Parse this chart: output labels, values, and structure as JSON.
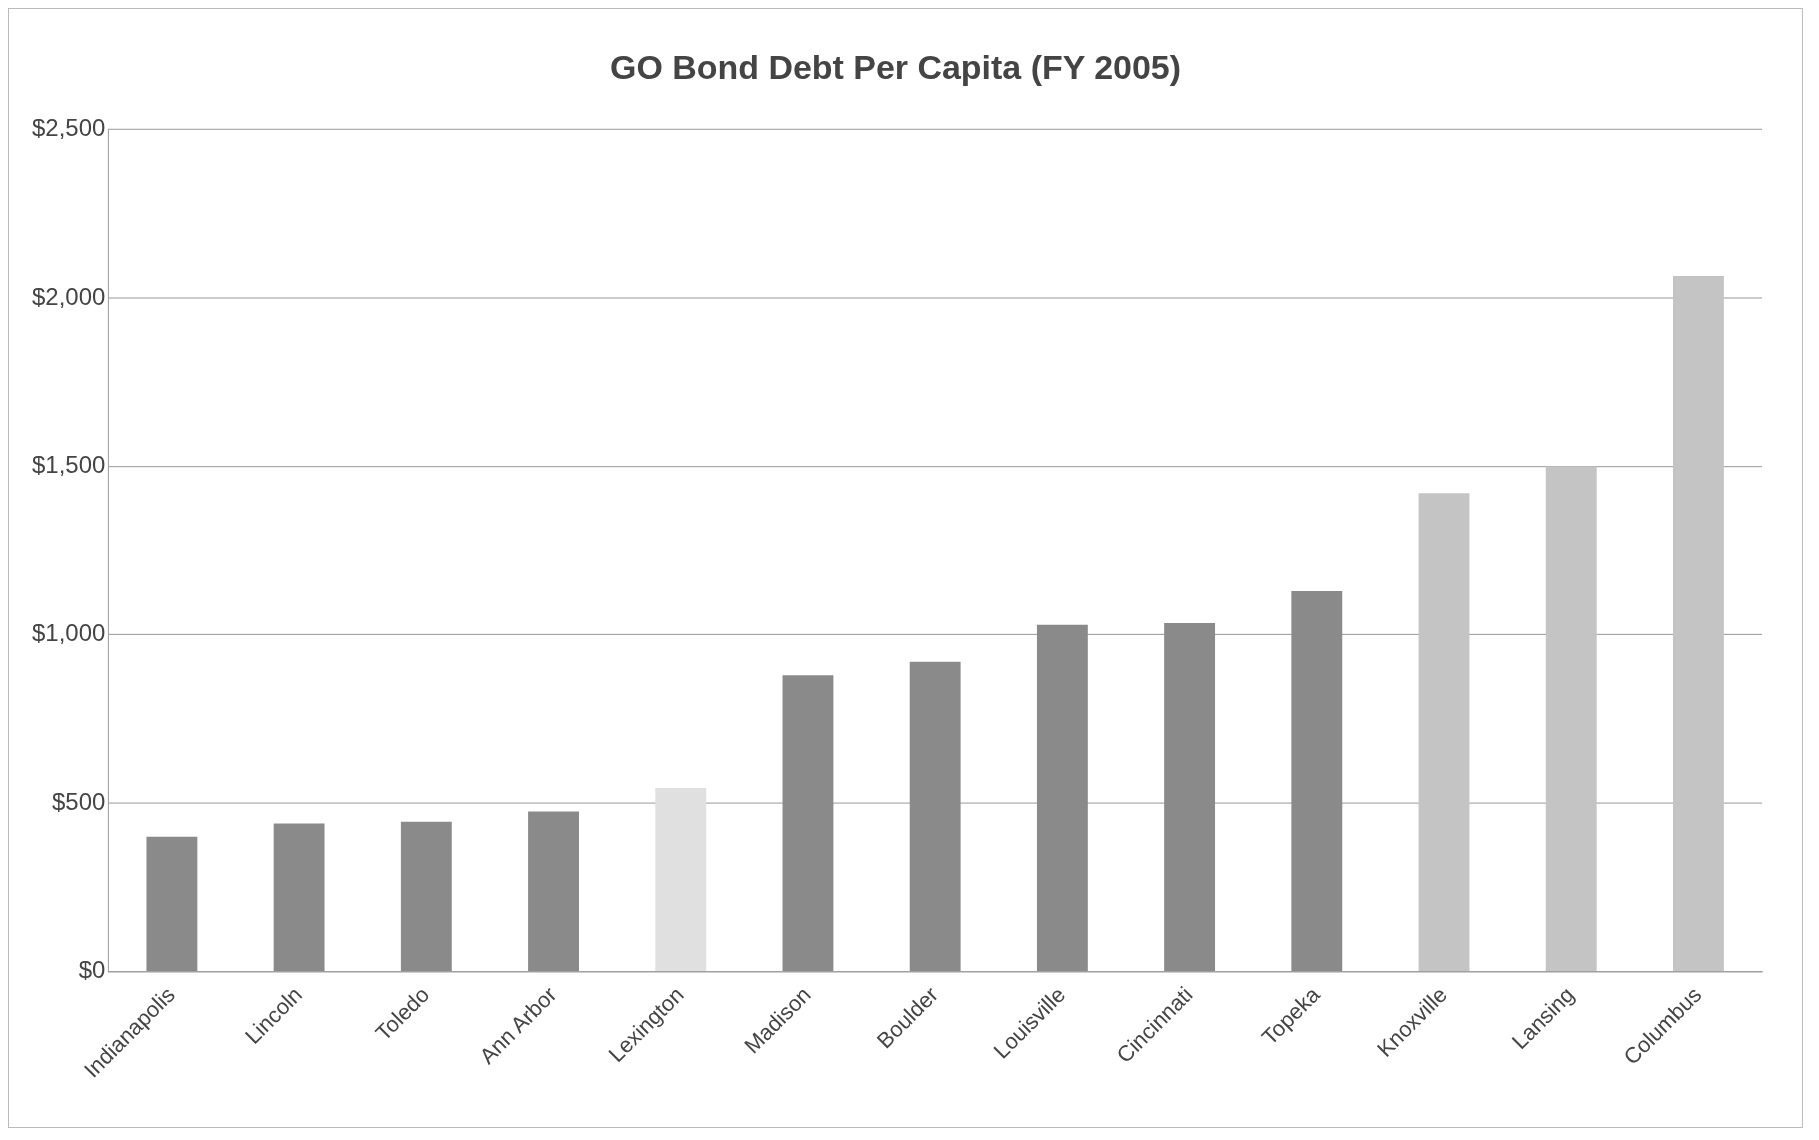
{
  "chart_data": {
    "type": "bar",
    "title": "GO Bond Debt Per Capita (FY 2005)",
    "categories": [
      "Indianapolis",
      "Lincoln",
      "Toledo",
      "Ann Arbor",
      "Lexington",
      "Madison",
      "Boulder",
      "Louisville",
      "Cincinnati",
      "Topeka",
      "Knoxville",
      "Lansing",
      "Columbus"
    ],
    "values": [
      400,
      440,
      445,
      475,
      545,
      880,
      920,
      1030,
      1035,
      1130,
      1420,
      1500,
      2065
    ],
    "colors": [
      "#8a8a8a",
      "#8a8a8a",
      "#8a8a8a",
      "#8a8a8a",
      "#e0e0e0",
      "#8a8a8a",
      "#8a8a8a",
      "#8a8a8a",
      "#8a8a8a",
      "#8a8a8a",
      "#c4c4c4",
      "#c4c4c4",
      "#c4c4c4"
    ],
    "ylim": [
      0,
      2500
    ],
    "yticks": [
      {
        "value": 0,
        "label": "$0"
      },
      {
        "value": 500,
        "label": "$500"
      },
      {
        "value": 1000,
        "label": "$1,000"
      },
      {
        "value": 1500,
        "label": "$1,500"
      },
      {
        "value": 2000,
        "label": "$2,000"
      },
      {
        "value": 2500,
        "label": "$2,500"
      }
    ],
    "grid": "y",
    "legend": false
  }
}
